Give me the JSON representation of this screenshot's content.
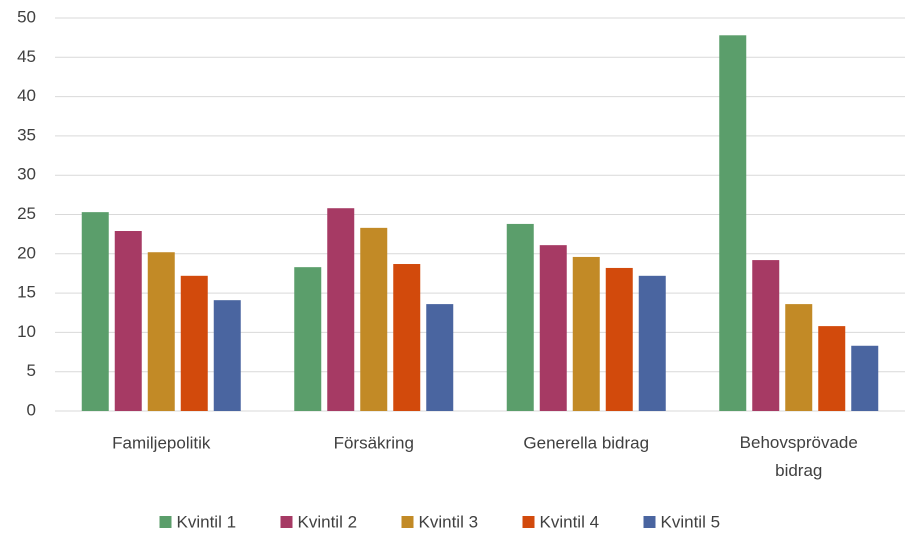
{
  "chart_data": {
    "type": "bar",
    "categories": [
      "Familjepolitik",
      "Försäkring",
      "Generella bidrag",
      "Behovsprövade bidrag"
    ],
    "series": [
      {
        "name": "Kvintil 1",
        "color": "#5b9e6b",
        "values": [
          25.3,
          18.3,
          23.8,
          47.8
        ]
      },
      {
        "name": "Kvintil 2",
        "color": "#a63a64",
        "values": [
          22.9,
          25.8,
          21.1,
          19.2
        ]
      },
      {
        "name": "Kvintil 3",
        "color": "#c28a26",
        "values": [
          20.2,
          23.3,
          19.6,
          13.6
        ]
      },
      {
        "name": "Kvintil 4",
        "color": "#d24a0c",
        "values": [
          17.2,
          18.7,
          18.2,
          10.8
        ]
      },
      {
        "name": "Kvintil 5",
        "color": "#4a65a0",
        "values": [
          14.1,
          13.6,
          17.2,
          8.3
        ]
      }
    ],
    "ylim": [
      0,
      50
    ],
    "yticks": [
      0,
      5,
      10,
      15,
      20,
      25,
      30,
      35,
      40,
      45,
      50
    ],
    "grid": true,
    "legend": "bottom"
  }
}
